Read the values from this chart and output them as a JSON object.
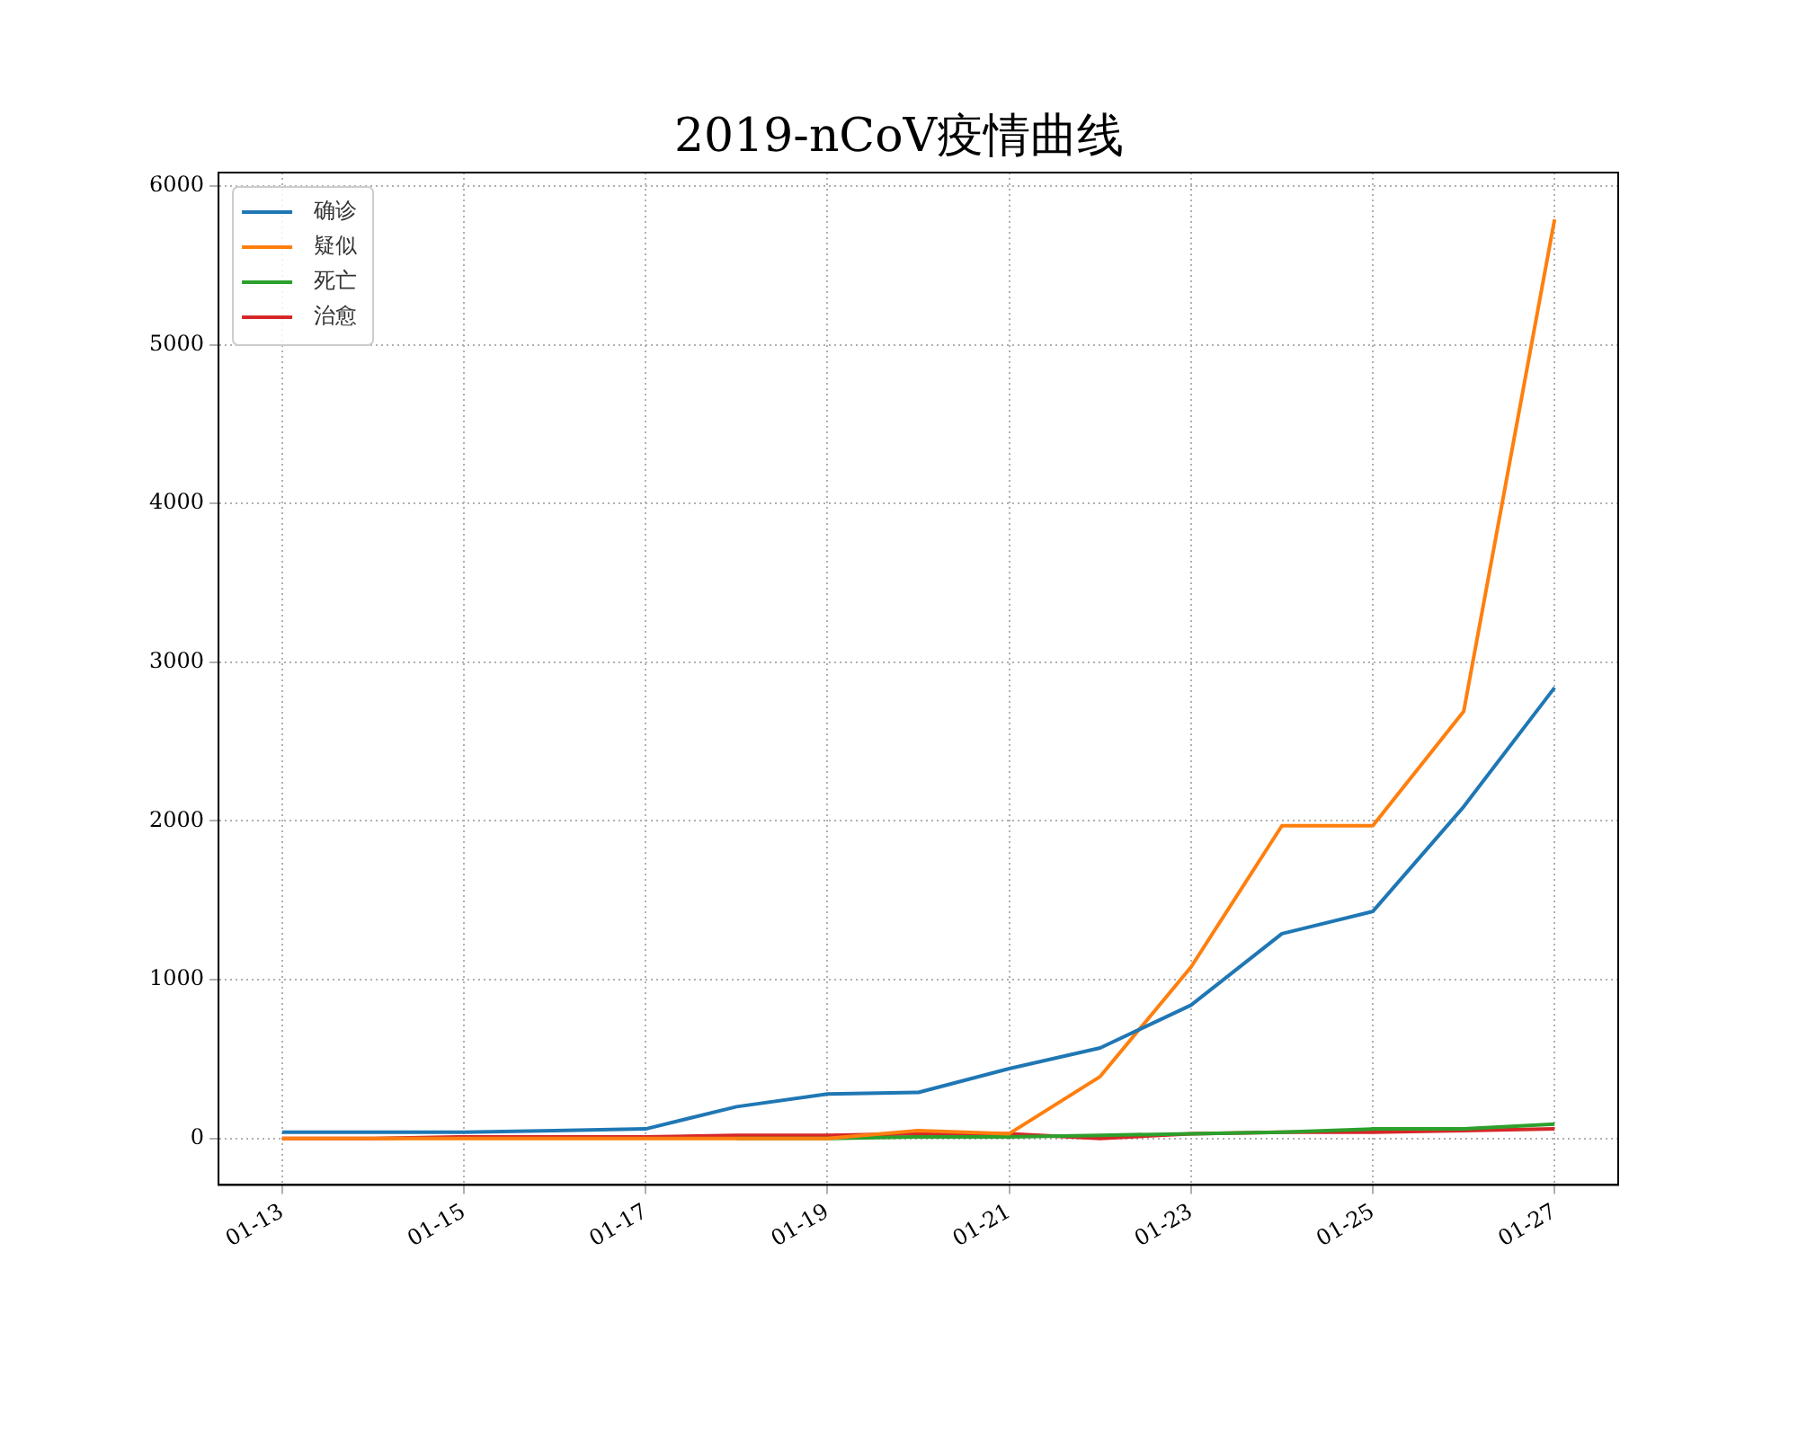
{
  "chart_data": {
    "type": "line",
    "title": "2019-nCoV疫情曲线",
    "x": [
      "--01-13",
      "--01-14",
      "--01-15",
      "--01-16",
      "--01-17",
      "--01-18",
      "--01-19",
      "--01-20",
      "--01-21",
      "--01-22",
      "--01-23",
      "--01-24",
      "--01-25",
      "--01-26",
      "--01-27"
    ],
    "series": [
      {
        "name": "确诊",
        "color": "#1f77b4",
        "values": [
          40,
          40,
          40,
          50,
          60,
          200,
          280,
          290,
          440,
          570,
          840,
          1290,
          1430,
          2090,
          2840
        ]
      },
      {
        "name": "疑似",
        "color": "#ff7f0e",
        "values": [
          0,
          0,
          0,
          0,
          0,
          0,
          0,
          50,
          30,
          390,
          1080,
          1970,
          1970,
          2690,
          5790
        ]
      },
      {
        "name": "死亡",
        "color": "#2ca02c",
        "values": [
          null,
          null,
          null,
          null,
          null,
          0,
          0,
          10,
          10,
          20,
          30,
          40,
          60,
          60,
          90
        ]
      },
      {
        "name": "治愈",
        "color": "#d62728",
        "values": [
          0,
          0,
          10,
          10,
          10,
          20,
          20,
          30,
          30,
          0,
          30,
          40,
          40,
          50,
          60
        ]
      }
    ],
    "xlim": [
      "--01-12T07:12",
      "--01-27T16:48"
    ],
    "xticks": [
      {
        "value": "--01-13",
        "label": "01-13"
      },
      {
        "value": "--01-15",
        "label": "01-15"
      },
      {
        "value": "--01-17",
        "label": "01-17"
      },
      {
        "value": "--01-19",
        "label": "01-19"
      },
      {
        "value": "--01-21",
        "label": "01-21"
      },
      {
        "value": "--01-23",
        "label": "01-23"
      },
      {
        "value": "--01-25",
        "label": "01-25"
      },
      {
        "value": "--01-27",
        "label": "01-27"
      }
    ],
    "ylim": [
      -293,
      6085
    ],
    "yticks": [
      0,
      1000,
      2000,
      3000,
      4000,
      5000,
      6000
    ],
    "grid": true,
    "legend": "top left",
    "line_style": "solid",
    "marker": "none"
  }
}
